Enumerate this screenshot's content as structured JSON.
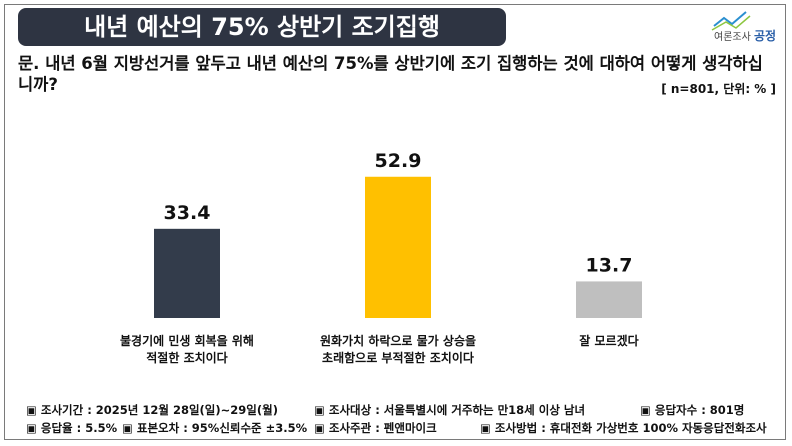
{
  "header": {
    "title": "내년 예산의 75% 상반기 조기집행",
    "logo_small": "여론조사",
    "logo_brand": "공정"
  },
  "question": {
    "text": "문. 내년 6월 지방선거를 앞두고 내년 예산의 75%를 상반기에 조기 집행하는 것에 대하여 어떻게 생각하십니까?",
    "unit": "[ n=801, 단위: % ]"
  },
  "chart_data": {
    "type": "bar",
    "categories": [
      [
        "불경기에 민생 회복을 위해",
        "적절한 조치이다"
      ],
      [
        "원화가치 하락으로 물가 상승을",
        "초래함으로 부적절한 조치이다"
      ],
      [
        "잘 모르겠다"
      ]
    ],
    "values": [
      33.4,
      52.9,
      13.7
    ],
    "value_labels": [
      "33.4",
      "52.9",
      "13.7"
    ],
    "colors": [
      "#333c4b",
      "#ffc000",
      "#bfbfbf"
    ],
    "ylim": [
      0,
      60
    ],
    "title": "",
    "xlabel": "",
    "ylabel": "",
    "grid": false
  },
  "footer": {
    "period": "▣ 조사기간 : 2025년 12월 28일(일)~29일(월)",
    "target": "▣ 조사대상 : 서울특별시에 거주하는 만18세 이상 남녀",
    "sample": "▣ 응답자수 : 801명",
    "response_rate": "▣ 응답율 : 5.5%",
    "error": "▣ 표본오차 : 95%신뢰수준 ±3.5%",
    "sponsor": "▣ 조사주관 : 펜앤마이크",
    "method": "▣ 조사방법 : 휴대전화 가상번호 100% 자동응답전화조사"
  }
}
